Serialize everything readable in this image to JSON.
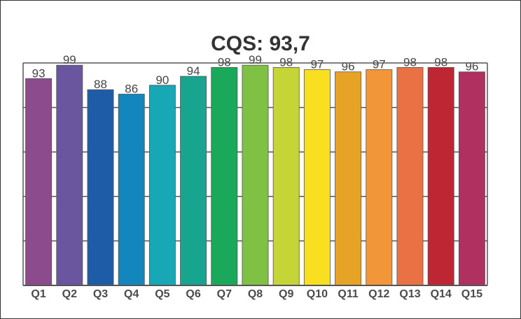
{
  "chart_data": {
    "type": "bar",
    "title": "CQS: 93,7",
    "categories": [
      "Q1",
      "Q2",
      "Q3",
      "Q4",
      "Q5",
      "Q6",
      "Q7",
      "Q8",
      "Q9",
      "Q10",
      "Q11",
      "Q12",
      "Q13",
      "Q14",
      "Q15"
    ],
    "values": [
      93,
      99,
      88,
      86,
      90,
      94,
      98,
      99,
      98,
      97,
      96,
      97,
      98,
      98,
      96
    ],
    "colors": [
      "#8c4b8c",
      "#6a55a0",
      "#1f5ca8",
      "#1486be",
      "#18a7b4",
      "#17a58f",
      "#1aa85a",
      "#7fc145",
      "#c5d436",
      "#f8df20",
      "#e7a326",
      "#f3963a",
      "#ea7143",
      "#be2634",
      "#b03060"
    ],
    "ylim": [
      0,
      100
    ],
    "grid": true,
    "legend": "none",
    "xlabel": "",
    "ylabel": ""
  }
}
